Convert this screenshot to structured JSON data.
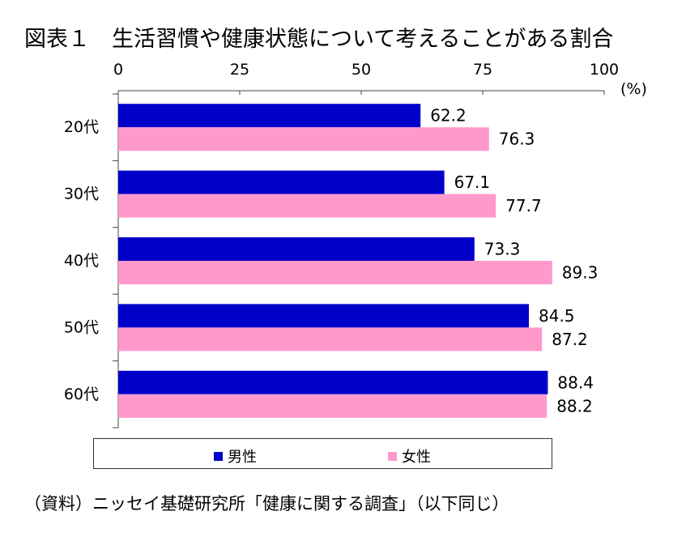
{
  "title": "図表１　生活習慣や健康状態について考えることがある割合",
  "source": "（資料）ニッセイ基礎研究所「健康に関する調査」（以下同じ）",
  "colors": {
    "male": "#0000c8",
    "female": "#ff99cc"
  },
  "chart_data": {
    "type": "bar",
    "orientation": "horizontal",
    "unit_label": "(%)",
    "categories": [
      "20代",
      "30代",
      "40代",
      "50代",
      "60代"
    ],
    "series": [
      {
        "name": "男性",
        "values": [
          62.2,
          67.1,
          73.3,
          84.5,
          88.4
        ]
      },
      {
        "name": "女性",
        "values": [
          76.3,
          77.7,
          89.3,
          87.2,
          88.2
        ]
      }
    ],
    "xlim": [
      0,
      100
    ],
    "xticks": [
      0,
      25,
      50,
      75,
      100
    ],
    "grid": false,
    "legend_position": "bottom"
  }
}
